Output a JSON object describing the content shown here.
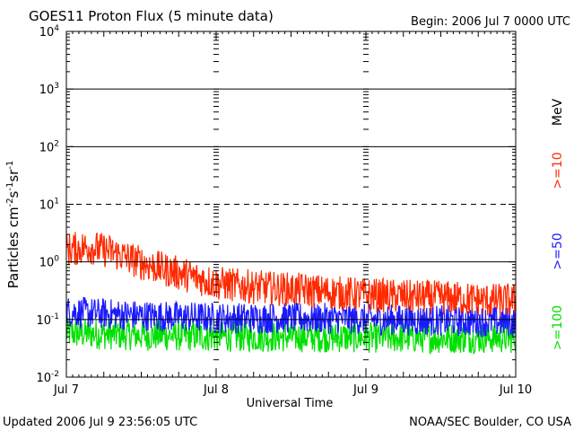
{
  "header": {
    "title": "GOES11 Proton Flux (5 minute data)",
    "begin": "Begin: 2006 Jul 7 0000 UTC"
  },
  "footer": {
    "updated": "Updated 2006 Jul  9 23:56:05 UTC",
    "source": "NOAA/SEC Boulder, CO USA"
  },
  "chart_data": {
    "type": "line",
    "title": "GOES11 Proton Flux (5 minute data)",
    "xlabel": "Universal Time",
    "ylabel_main": "Particles cm",
    "ylabel_sup1": "-2",
    "ylabel_mid1": "s",
    "ylabel_sup2": "-1",
    "ylabel_mid2": "sr",
    "ylabel_sup3": "-1",
    "y_scale": "log",
    "ylim": [
      0.01,
      10000
    ],
    "xlim_days": [
      0,
      3
    ],
    "x_tick_labels": [
      "Jul 7",
      "Jul 8",
      "Jul 9",
      "Jul 10"
    ],
    "y_tick_labels": [
      {
        "base": "10",
        "exp": "-2"
      },
      {
        "base": "10",
        "exp": "-1"
      },
      {
        "base": "10",
        "exp": "0"
      },
      {
        "base": "10",
        "exp": "1"
      },
      {
        "base": "10",
        "exp": "2"
      },
      {
        "base": "10",
        "exp": "3"
      },
      {
        "base": "10",
        "exp": "4"
      }
    ],
    "reference_lines": [
      {
        "y": 1000,
        "style": "solid"
      },
      {
        "y": 100,
        "style": "solid"
      },
      {
        "y": 10,
        "style": "dashed"
      },
      {
        "y": 1,
        "style": "solid"
      },
      {
        "y": 0.1,
        "style": "solid"
      }
    ],
    "energy_unit": "MeV",
    "series": [
      {
        "name": ">=10",
        "color": "#ff2a00",
        "anchors": [
          [
            0.0,
            1.5
          ],
          [
            0.15,
            1.7
          ],
          [
            0.3,
            1.4
          ],
          [
            0.45,
            1.0
          ],
          [
            0.6,
            0.75
          ],
          [
            0.8,
            0.55
          ],
          [
            1.0,
            0.4
          ],
          [
            1.2,
            0.35
          ],
          [
            1.4,
            0.32
          ],
          [
            1.6,
            0.3
          ],
          [
            1.8,
            0.27
          ],
          [
            2.0,
            0.25
          ],
          [
            2.3,
            0.23
          ],
          [
            2.6,
            0.22
          ],
          [
            2.8,
            0.2
          ],
          [
            3.0,
            0.2
          ]
        ],
        "jitter": 0.5
      },
      {
        "name": ">=50",
        "color": "#1a1aff",
        "anchors": [
          [
            0.0,
            0.13
          ],
          [
            0.2,
            0.12
          ],
          [
            0.5,
            0.11
          ],
          [
            1.0,
            0.1
          ],
          [
            1.5,
            0.1
          ],
          [
            2.0,
            0.095
          ],
          [
            2.5,
            0.09
          ],
          [
            3.0,
            0.085
          ]
        ],
        "jitter": 0.45
      },
      {
        "name": ">=100",
        "color": "#00e000",
        "anchors": [
          [
            0.0,
            0.055
          ],
          [
            0.5,
            0.05
          ],
          [
            1.0,
            0.048
          ],
          [
            1.5,
            0.047
          ],
          [
            2.0,
            0.046
          ],
          [
            2.5,
            0.045
          ],
          [
            3.0,
            0.045
          ]
        ],
        "jitter": 0.45
      }
    ]
  }
}
